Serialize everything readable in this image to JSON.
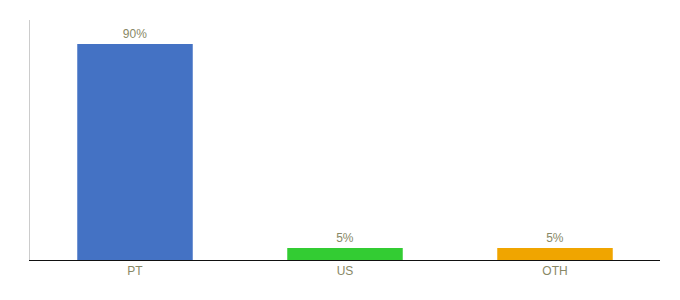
{
  "chart_data": {
    "type": "bar",
    "categories": [
      "PT",
      "US",
      "OTH"
    ],
    "values": [
      90,
      5,
      5
    ],
    "value_labels": [
      "90%",
      "5%",
      "5%"
    ],
    "data_labels": true,
    "colors": [
      "#4472c4",
      "#33cc33",
      "#f0a500"
    ],
    "ylim": [
      0,
      100
    ],
    "grid": false,
    "tick_labels": "x"
  }
}
